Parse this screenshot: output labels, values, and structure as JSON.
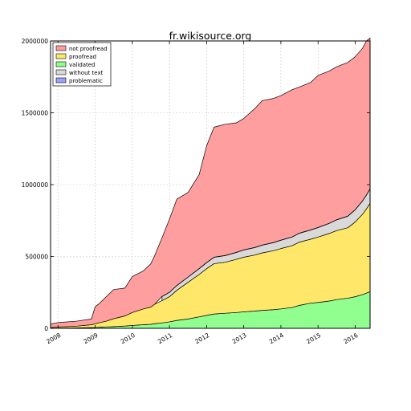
{
  "chart_data": {
    "type": "area",
    "title": "fr.wikisource.org",
    "xlabel": "",
    "ylabel": "",
    "xlim": [
      2007.8,
      2016.4
    ],
    "ylim": [
      0,
      2000000
    ],
    "grid": true,
    "stacked": true,
    "legend_position": "top-left",
    "x_ticks": [
      2008,
      2009,
      2010,
      2011,
      2012,
      2013,
      2014,
      2015,
      2016
    ],
    "x_tick_labels": [
      "2008",
      "2009",
      "2010",
      "2011",
      "2012",
      "2013",
      "2014",
      "2015",
      "2016"
    ],
    "y_ticks": [
      0,
      500000,
      1000000,
      1500000,
      2000000
    ],
    "y_tick_labels": [
      "0",
      "500000",
      "1000000",
      "1500000",
      "2000000"
    ],
    "x": [
      2007.8,
      2008.0,
      2008.5,
      2008.9,
      2009.0,
      2009.1,
      2009.3,
      2009.5,
      2009.8,
      2010.0,
      2010.3,
      2010.5,
      2010.6,
      2010.8,
      2011.0,
      2011.2,
      2011.5,
      2011.8,
      2012.0,
      2012.2,
      2012.5,
      2012.8,
      2013.0,
      2013.3,
      2013.5,
      2013.8,
      2014.0,
      2014.3,
      2014.5,
      2014.8,
      2015.0,
      2015.3,
      2015.5,
      2015.8,
      2016.0,
      2016.2,
      2016.3,
      2016.4
    ],
    "series": [
      {
        "name": "validated",
        "color": "#90ff90",
        "values": [
          0,
          1000,
          3000,
          5000,
          6000,
          8000,
          10000,
          12000,
          16000,
          20000,
          25000,
          28000,
          32000,
          38000,
          45000,
          55000,
          65000,
          80000,
          90000,
          100000,
          105000,
          110000,
          115000,
          120000,
          125000,
          130000,
          135000,
          145000,
          160000,
          175000,
          180000,
          190000,
          200000,
          210000,
          220000,
          235000,
          245000,
          255000
        ]
      },
      {
        "name": "proofread",
        "color": "#ffe769",
        "values": [
          5000,
          8000,
          12000,
          20000,
          25000,
          30000,
          40000,
          55000,
          70000,
          90000,
          110000,
          120000,
          135000,
          155000,
          175000,
          210000,
          255000,
          295000,
          325000,
          350000,
          355000,
          370000,
          380000,
          390000,
          400000,
          410000,
          420000,
          430000,
          440000,
          445000,
          455000,
          470000,
          480000,
          490000,
          520000,
          560000,
          585000,
          615000
        ]
      },
      {
        "name": "without text",
        "color": "#d9d9d9",
        "values": [
          0,
          0,
          0,
          0,
          0,
          0,
          0,
          0,
          0,
          0,
          0,
          0,
          0,
          28000,
          30000,
          33000,
          36000,
          40000,
          42000,
          44000,
          46000,
          48000,
          50000,
          52000,
          54000,
          56000,
          58000,
          60000,
          62000,
          64000,
          66000,
          70000,
          75000,
          80000,
          85000,
          92000,
          96000,
          100000
        ]
      },
      {
        "name": "problematic",
        "color": "#9f9fff",
        "values": [
          0,
          0,
          0,
          0,
          0,
          0,
          0,
          0,
          0,
          0,
          0,
          0,
          0,
          1000,
          1000,
          1000,
          1000,
          1000,
          1000,
          1000,
          1000,
          1000,
          1000,
          1000,
          1000,
          1000,
          1000,
          1000,
          1000,
          1000,
          1000,
          1000,
          1000,
          1000,
          1000,
          1000,
          1000,
          1000
        ]
      },
      {
        "name": "not proofread",
        "color": "#ff9e9e",
        "values": [
          25000,
          31000,
          35000,
          40000,
          119000,
          132000,
          170000,
          203000,
          194000,
          250000,
          265000,
          302000,
          338000,
          408000,
          509000,
          601000,
          588000,
          654000,
          812000,
          905000,
          913000,
          901000,
          914000,
          967000,
          1005000,
          1003000,
          1006000,
          1024000,
          1017000,
          1026000,
          1058000,
          1059000,
          1064000,
          1069000,
          1064000,
          1062000,
          1073000,
          1049000
        ]
      }
    ]
  },
  "legend_order": [
    "not proofread",
    "proofread",
    "validated",
    "without text",
    "problematic"
  ]
}
